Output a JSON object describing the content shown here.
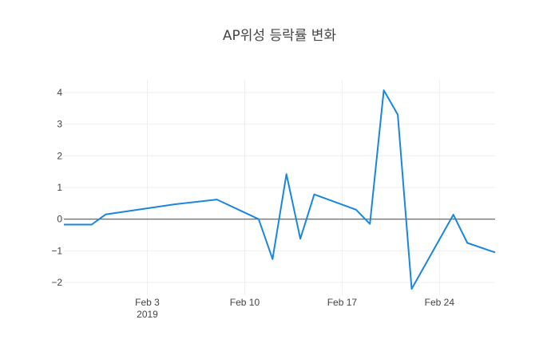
{
  "chart_data": {
    "type": "line",
    "title": "AP위성 등락률 변화",
    "xlabel": "",
    "ylabel": "",
    "x_range": [
      "2019-01-28",
      "2019-02-28"
    ],
    "ylim": [
      -2.4,
      4.4
    ],
    "grid": true,
    "line_color": "#1a86dd",
    "x_ticks": [
      {
        "date": "2019-02-03",
        "label": "Feb 3",
        "sublabel": "2019"
      },
      {
        "date": "2019-02-10",
        "label": "Feb 10",
        "sublabel": ""
      },
      {
        "date": "2019-02-17",
        "label": "Feb 17",
        "sublabel": ""
      },
      {
        "date": "2019-02-24",
        "label": "Feb 24",
        "sublabel": ""
      }
    ],
    "y_ticks": [
      {
        "value": 4,
        "label": "4"
      },
      {
        "value": 3,
        "label": "3"
      },
      {
        "value": 2,
        "label": "2"
      },
      {
        "value": 1,
        "label": "1"
      },
      {
        "value": 0,
        "label": "0"
      },
      {
        "value": -1,
        "label": "−1"
      },
      {
        "value": -2,
        "label": "−2"
      }
    ],
    "x": [
      "2019-01-28",
      "2019-01-30",
      "2019-01-31",
      "2019-02-05",
      "2019-02-08",
      "2019-02-11",
      "2019-02-12",
      "2019-02-13",
      "2019-02-14",
      "2019-02-15",
      "2019-02-18",
      "2019-02-19",
      "2019-02-20",
      "2019-02-21",
      "2019-02-22",
      "2019-02-25",
      "2019-02-26",
      "2019-02-28"
    ],
    "y": [
      -0.17,
      -0.17,
      0.15,
      0.47,
      0.62,
      0.0,
      -1.26,
      1.42,
      -0.62,
      0.78,
      0.3,
      -0.15,
      4.07,
      3.3,
      -2.2,
      0.14,
      -0.75,
      -1.05
    ]
  }
}
